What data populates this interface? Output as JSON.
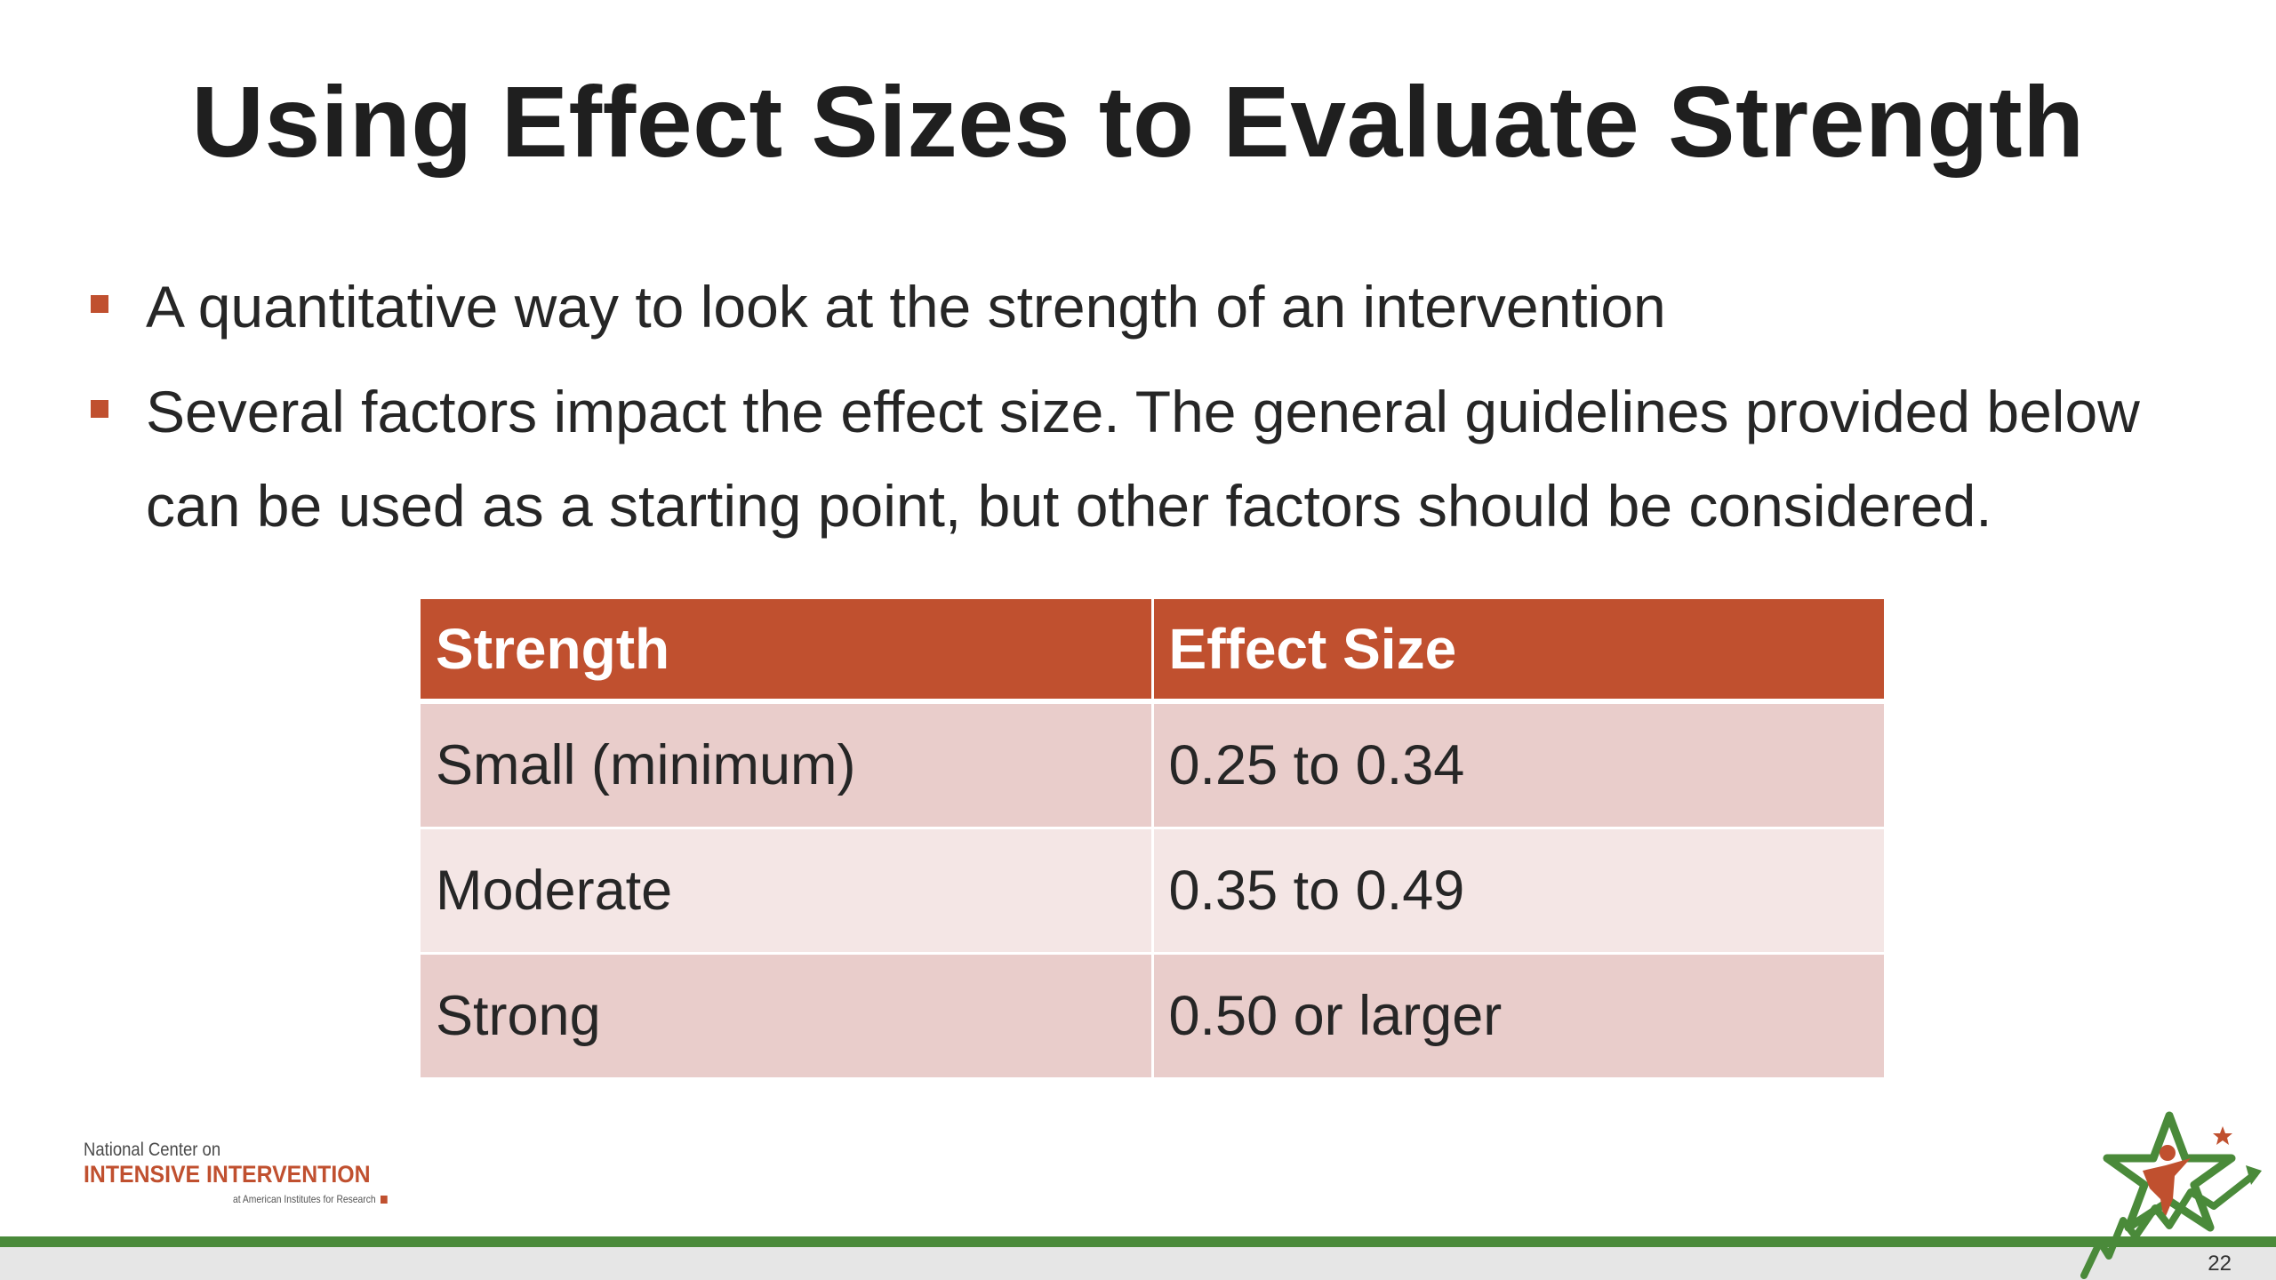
{
  "slide": {
    "title": "Using Effect Sizes to Evaluate Strength",
    "page_number": "22"
  },
  "bullets": [
    {
      "text": "A quantitative way to look at the strength of an intervention"
    },
    {
      "text": "Several factors impact the effect size. The general guidelines provided below can be used as a starting point, but other factors should be considered."
    }
  ],
  "table": {
    "headers": [
      "Strength",
      "Effect Size"
    ],
    "rows": [
      [
        "Small (minimum)",
        "0.25 to 0.34"
      ],
      [
        "Moderate",
        "0.35 to 0.49"
      ],
      [
        "Strong",
        "0.50 or larger"
      ]
    ]
  },
  "organization": {
    "line1": "National Center on",
    "line2": "INTENSIVE INTERVENTION",
    "line3": "at American Institutes for Research"
  },
  "colors": {
    "accent": "#c0502f",
    "row_dark": "#e9cdcb",
    "row_light": "#f4e6e5",
    "footer_green": "#4a8a3a",
    "footer_grey": "#e6e6e6"
  },
  "icons": {
    "bullet_marker": "square-bullet-icon",
    "star_logo": "star-figure-logo-icon"
  }
}
